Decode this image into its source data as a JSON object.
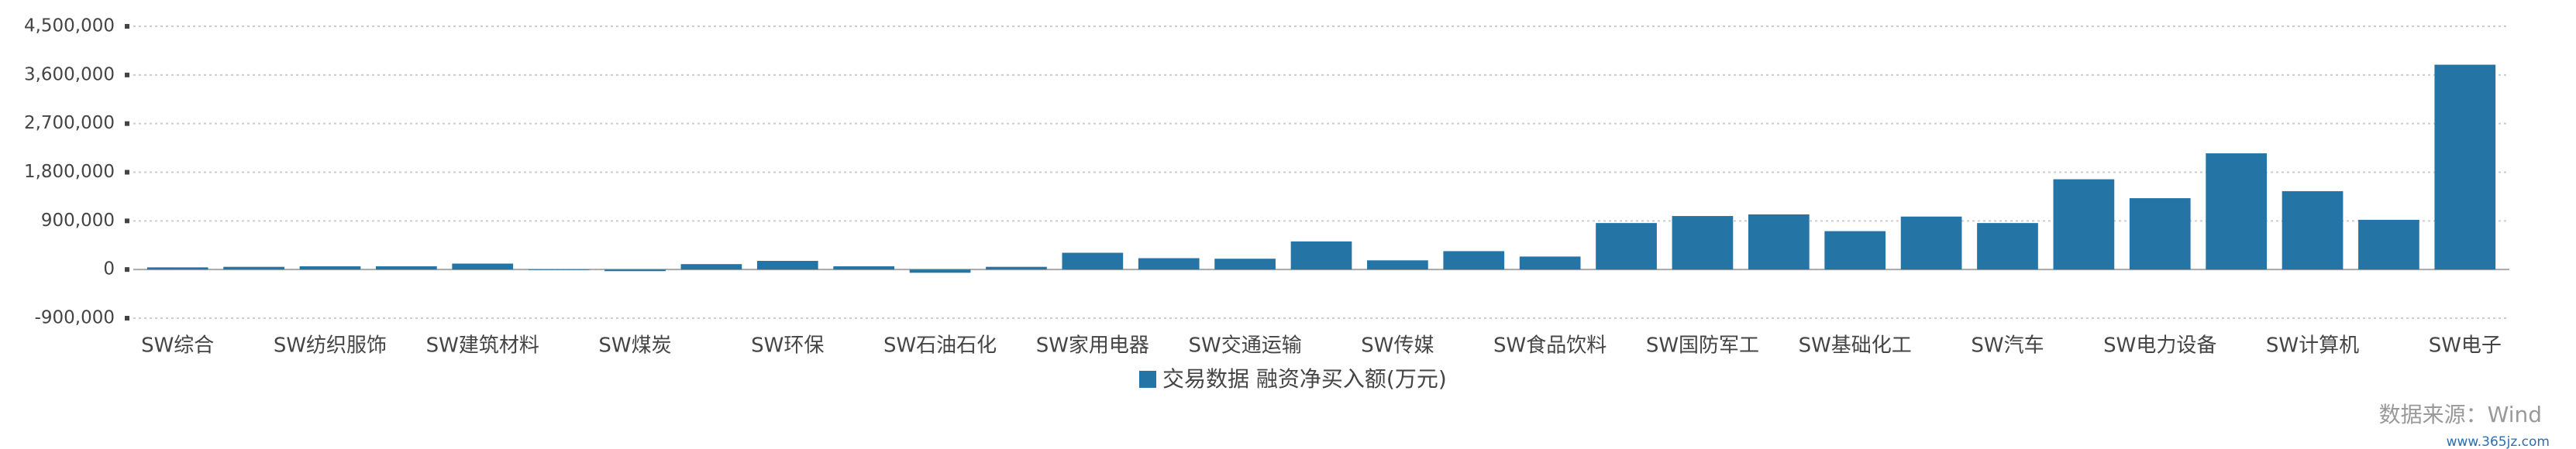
{
  "chart_data": {
    "type": "bar",
    "categories": [
      "SW综合",
      null,
      "SW纺织服饰",
      null,
      "SW建筑材料",
      null,
      "SW煤炭",
      null,
      "SW环保",
      null,
      "SW石油石化",
      null,
      "SW家用电器",
      null,
      "SW交通运输",
      null,
      "SW传媒",
      null,
      "SW食品饮料",
      null,
      "SW国防军工",
      null,
      "SW基础化工",
      null,
      "SW汽车",
      null,
      "SW电力设备",
      null,
      "SW计算机",
      null,
      "SW电子"
    ],
    "series": [
      {
        "name": "交易数据 融资净买入额(万元)",
        "color": "#2475a5",
        "values": [
          40000,
          50000,
          60000,
          60000,
          110000,
          -10000,
          -30000,
          100000,
          160000,
          60000,
          -60000,
          50000,
          310000,
          210000,
          200000,
          520000,
          170000,
          340000,
          240000,
          860000,
          990000,
          1020000,
          710000,
          980000,
          860000,
          1670000,
          1320000,
          2150000,
          1450000,
          920000,
          3790000
        ]
      }
    ],
    "ylim": [
      -900000,
      4500000
    ],
    "yticks": [
      {
        "value": -900000,
        "label": "-900,000"
      },
      0,
      {
        "value": 900000,
        "label": "900,000"
      },
      {
        "value": 1800000,
        "label": "1,800,000"
      },
      {
        "value": 2700000,
        "label": "2,700,000"
      },
      {
        "value": 3600000,
        "label": "3,600,000"
      },
      {
        "value": 4500000,
        "label": "4,500,000"
      }
    ],
    "grid": true,
    "source": "数据来源：Wind",
    "watermark": "www.365jz.com"
  }
}
